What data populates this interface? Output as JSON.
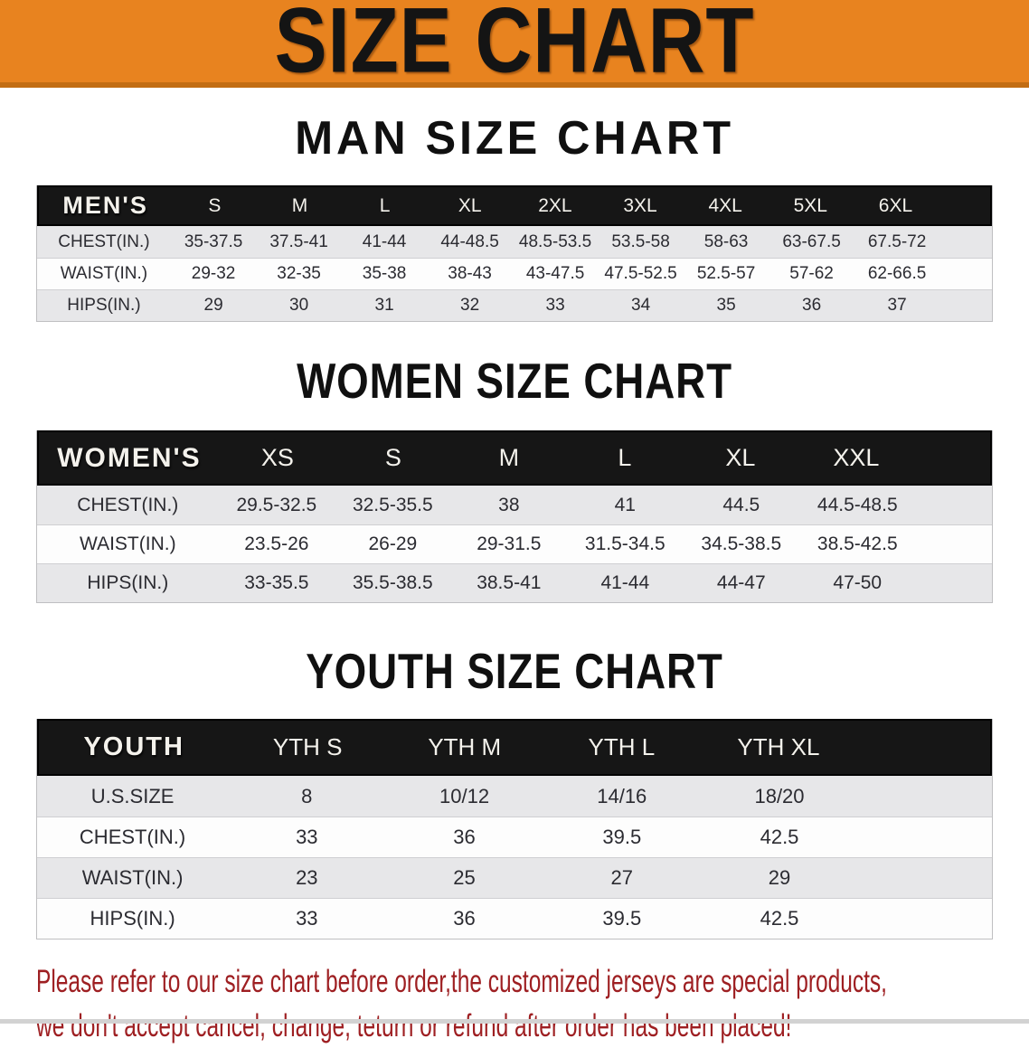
{
  "banner": {
    "title": "SIZE CHART"
  },
  "sections": [
    {
      "title": "MAN SIZE CHART",
      "header_label": "MEN'S",
      "columns": [
        "S",
        "M",
        "L",
        "XL",
        "2XL",
        "3XL",
        "4XL",
        "5XL",
        "6XL"
      ],
      "rows": [
        {
          "label": "CHEST(IN.)",
          "values": [
            "35-37.5",
            "37.5-41",
            "41-44",
            "44-48.5",
            "48.5-53.5",
            "53.5-58",
            "58-63",
            "63-67.5",
            "67.5-72"
          ]
        },
        {
          "label": "WAIST(IN.)",
          "values": [
            "29-32",
            "32-35",
            "35-38",
            "38-43",
            "43-47.5",
            "47.5-52.5",
            "52.5-57",
            "57-62",
            "62-66.5"
          ]
        },
        {
          "label": "HIPS(IN.)",
          "values": [
            "29",
            "30",
            "31",
            "32",
            "33",
            "34",
            "35",
            "36",
            "37"
          ]
        }
      ]
    },
    {
      "title": "WOMEN SIZE CHART",
      "header_label": "WOMEN'S",
      "columns": [
        "XS",
        "S",
        "M",
        "L",
        "XL",
        "XXL"
      ],
      "rows": [
        {
          "label": "CHEST(IN.)",
          "values": [
            "29.5-32.5",
            "32.5-35.5",
            "38",
            "41",
            "44.5",
            "44.5-48.5"
          ]
        },
        {
          "label": "WAIST(IN.)",
          "values": [
            "23.5-26",
            "26-29",
            "29-31.5",
            "31.5-34.5",
            "34.5-38.5",
            "38.5-42.5"
          ]
        },
        {
          "label": "HIPS(IN.)",
          "values": [
            "33-35.5",
            "35.5-38.5",
            "38.5-41",
            "41-44",
            "44-47",
            "47-50"
          ]
        }
      ]
    },
    {
      "title": "YOUTH SIZE CHART",
      "header_label": "YOUTH",
      "columns": [
        "YTH S",
        "YTH M",
        "YTH L",
        "YTH XL"
      ],
      "rows": [
        {
          "label": "U.S.SIZE",
          "values": [
            "8",
            "10/12",
            "14/16",
            "18/20"
          ]
        },
        {
          "label": "CHEST(IN.)",
          "values": [
            "33",
            "36",
            "39.5",
            "42.5"
          ]
        },
        {
          "label": "WAIST(IN.)",
          "values": [
            "23",
            "25",
            "27",
            "29"
          ]
        },
        {
          "label": "HIPS(IN.)",
          "values": [
            "33",
            "36",
            "39.5",
            "42.5"
          ]
        }
      ]
    }
  ],
  "footer": {
    "line1": "Please refer to our size chart before order,the customized jerseys are special products,",
    "line2": "we don't accept cancel, change, teturn or refund after order has been placed!"
  },
  "colors": {
    "banner_bg": "#e8831f",
    "banner_edge": "#c26d13",
    "header_bar": "#161616",
    "row_shade": "#e7e7e9",
    "footer_text": "#9e1f22"
  }
}
